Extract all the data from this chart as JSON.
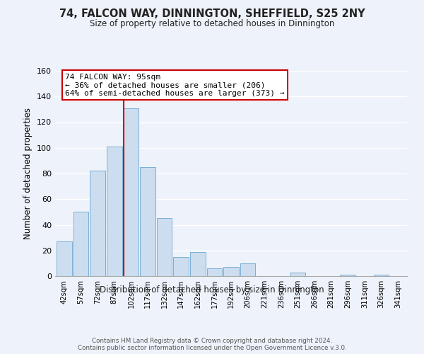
{
  "title": "74, FALCON WAY, DINNINGTON, SHEFFIELD, S25 2NY",
  "subtitle": "Size of property relative to detached houses in Dinnington",
  "xlabel": "Distribution of detached houses by size in Dinnington",
  "ylabel": "Number of detached properties",
  "bar_labels": [
    "42sqm",
    "57sqm",
    "72sqm",
    "87sqm",
    "102sqm",
    "117sqm",
    "132sqm",
    "147sqm",
    "162sqm",
    "177sqm",
    "192sqm",
    "206sqm",
    "221sqm",
    "236sqm",
    "251sqm",
    "266sqm",
    "281sqm",
    "296sqm",
    "311sqm",
    "326sqm",
    "341sqm"
  ],
  "bar_values": [
    27,
    50,
    82,
    101,
    131,
    85,
    45,
    15,
    19,
    6,
    7,
    10,
    0,
    0,
    3,
    0,
    0,
    1,
    0,
    1,
    0
  ],
  "bar_color": "#ccddf0",
  "bar_edge_color": "#7aafd4",
  "ylim": [
    0,
    160
  ],
  "yticks": [
    0,
    20,
    40,
    60,
    80,
    100,
    120,
    140,
    160
  ],
  "property_line_color": "#cc0000",
  "annotation_title": "74 FALCON WAY: 95sqm",
  "annotation_line1": "← 36% of detached houses are smaller (206)",
  "annotation_line2": "64% of semi-detached houses are larger (373) →",
  "annotation_box_color": "#ffffff",
  "annotation_box_edge": "#cc0000",
  "footer1": "Contains HM Land Registry data © Crown copyright and database right 2024.",
  "footer2": "Contains public sector information licensed under the Open Government Licence v.3.0.",
  "background_color": "#eef2fa",
  "grid_color": "#ffffff"
}
